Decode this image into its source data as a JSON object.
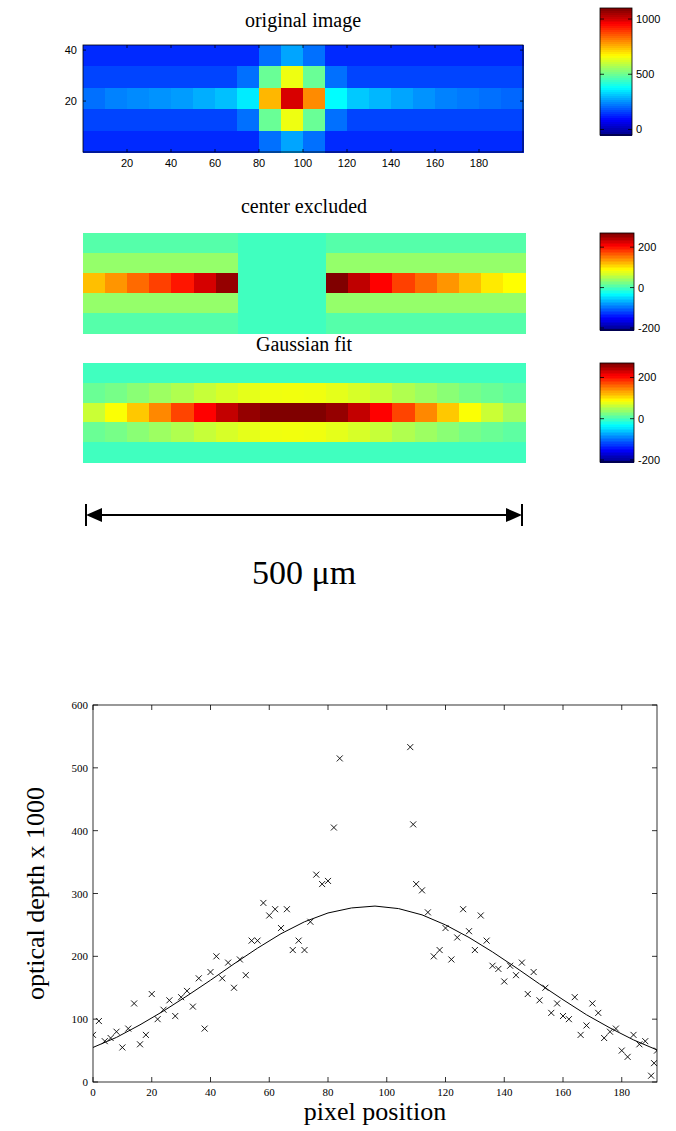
{
  "chart_data": [
    {
      "type": "heatmap",
      "title": "original image",
      "xlim": [
        0,
        200
      ],
      "ylim": [
        0,
        42
      ],
      "xticks": [
        20,
        40,
        60,
        80,
        100,
        120,
        140,
        160,
        180
      ],
      "yticks": [
        20,
        40
      ],
      "cells": [
        [
          140,
          140,
          140,
          140,
          140,
          140,
          140,
          140,
          220,
          280,
          220,
          140,
          140,
          140,
          140,
          140,
          140,
          140,
          140,
          140
        ],
        [
          170,
          170,
          170,
          170,
          170,
          170,
          170,
          220,
          500,
          650,
          500,
          220,
          170,
          170,
          170,
          170,
          170,
          170,
          170,
          170
        ],
        [
          220,
          240,
          250,
          260,
          270,
          290,
          310,
          360,
          750,
          1000,
          800,
          380,
          320,
          300,
          280,
          260,
          240,
          230,
          220,
          210
        ],
        [
          170,
          170,
          170,
          170,
          170,
          170,
          170,
          220,
          500,
          650,
          500,
          220,
          170,
          170,
          170,
          170,
          170,
          170,
          170,
          170
        ],
        [
          140,
          140,
          140,
          140,
          140,
          140,
          140,
          140,
          220,
          280,
          220,
          140,
          140,
          140,
          140,
          140,
          140,
          140,
          140,
          140
        ]
      ],
      "colorbar": {
        "range": [
          -50,
          1100
        ],
        "ticks": [
          0,
          500,
          1000
        ]
      }
    },
    {
      "type": "heatmap",
      "title": "center excluded",
      "tick_labels": false,
      "cells": [
        [
          10,
          10,
          10,
          10,
          10,
          10,
          10,
          0,
          0,
          0,
          0,
          10,
          10,
          10,
          10,
          10,
          10,
          10,
          10,
          10
        ],
        [
          40,
          40,
          40,
          40,
          40,
          40,
          40,
          0,
          0,
          0,
          0,
          40,
          40,
          40,
          40,
          40,
          40,
          40,
          40,
          40
        ],
        [
          120,
          140,
          160,
          180,
          200,
          230,
          260,
          0,
          0,
          0,
          0,
          270,
          240,
          210,
          180,
          160,
          140,
          120,
          100,
          90
        ],
        [
          40,
          40,
          40,
          40,
          40,
          40,
          40,
          0,
          0,
          0,
          0,
          40,
          40,
          40,
          40,
          40,
          40,
          40,
          40,
          40
        ],
        [
          10,
          10,
          10,
          10,
          10,
          10,
          10,
          0,
          0,
          0,
          0,
          10,
          10,
          10,
          10,
          10,
          10,
          10,
          10,
          10
        ]
      ],
      "colorbar": {
        "range": [
          -210,
          270
        ],
        "ticks": [
          200,
          0,
          -200
        ]
      }
    },
    {
      "type": "heatmap",
      "title": "Gaussian fit",
      "tick_labels": false,
      "cells": [
        [
          0,
          0,
          0,
          0,
          0,
          0,
          0,
          0,
          0,
          0,
          0,
          0,
          0,
          0,
          0,
          0,
          0,
          0,
          0,
          0
        ],
        [
          20,
          26,
          35,
          44,
          53,
          63,
          71,
          78,
          83,
          84,
          83,
          78,
          71,
          63,
          53,
          44,
          35,
          26,
          20,
          14
        ],
        [
          65,
          88,
          116,
          146,
          178,
          210,
          238,
          260,
          275,
          280,
          275,
          260,
          238,
          210,
          178,
          146,
          116,
          88,
          65,
          46
        ],
        [
          20,
          26,
          35,
          44,
          53,
          63,
          71,
          78,
          83,
          84,
          83,
          78,
          71,
          63,
          53,
          44,
          35,
          26,
          20,
          14
        ],
        [
          0,
          0,
          0,
          0,
          0,
          0,
          0,
          0,
          0,
          0,
          0,
          0,
          0,
          0,
          0,
          0,
          0,
          0,
          0,
          0
        ]
      ],
      "colorbar": {
        "range": [
          -210,
          270
        ],
        "ticks": [
          200,
          0,
          -200
        ]
      }
    },
    {
      "type": "scatter",
      "x_label": "pixel position",
      "y_label": "optical depth x 1000",
      "xlim": [
        0,
        192
      ],
      "ylim": [
        0,
        600
      ],
      "xticks": [
        0,
        20,
        40,
        60,
        80,
        100,
        120,
        140,
        160,
        180
      ],
      "yticks": [
        0,
        100,
        200,
        300,
        400,
        500,
        600
      ],
      "series": [
        {
          "type": "scatter",
          "marker": "x",
          "color": "#000000",
          "x": [
            0,
            2,
            4,
            6,
            8,
            10,
            12,
            14,
            16,
            18,
            20,
            22,
            24,
            26,
            28,
            30,
            32,
            34,
            36,
            38,
            40,
            42,
            44,
            46,
            48,
            50,
            52,
            54,
            56,
            58,
            60,
            62,
            64,
            66,
            68,
            70,
            72,
            74,
            76,
            78,
            80,
            82,
            84,
            108,
            109,
            110,
            112,
            114,
            116,
            118,
            120,
            122,
            124,
            126,
            128,
            130,
            132,
            134,
            136,
            138,
            140,
            142,
            144,
            146,
            148,
            150,
            152,
            154,
            156,
            158,
            160,
            162,
            164,
            166,
            168,
            170,
            172,
            174,
            176,
            178,
            180,
            182,
            184,
            186,
            188,
            190,
            191,
            192
          ],
          "values": [
            75,
            97,
            65,
            70,
            80,
            55,
            85,
            125,
            60,
            75,
            140,
            100,
            115,
            130,
            105,
            135,
            145,
            120,
            165,
            85,
            175,
            200,
            165,
            190,
            150,
            195,
            170,
            225,
            225,
            285,
            265,
            275,
            245,
            275,
            210,
            225,
            210,
            255,
            330,
            315,
            320,
            405,
            515,
            533,
            410,
            315,
            305,
            270,
            200,
            210,
            245,
            195,
            230,
            275,
            240,
            210,
            265,
            225,
            185,
            180,
            160,
            185,
            170,
            190,
            140,
            175,
            130,
            150,
            110,
            125,
            105,
            100,
            135,
            75,
            90,
            125,
            110,
            70,
            80,
            85,
            50,
            40,
            75,
            60,
            65,
            10,
            30,
            50
          ]
        },
        {
          "type": "line",
          "line_style": "solid",
          "color": "#000000",
          "x": [
            0,
            8,
            16,
            24,
            32,
            40,
            48,
            56,
            64,
            72,
            80,
            88,
            96,
            104,
            112,
            120,
            128,
            136,
            144,
            152,
            160,
            168,
            176,
            184,
            192
          ],
          "values": [
            55,
            71,
            91,
            113,
            137,
            162,
            188,
            213,
            236,
            255,
            269,
            277,
            280,
            276,
            266,
            250,
            230,
            207,
            182,
            156,
            131,
            107,
            86,
            67,
            51
          ]
        }
      ]
    }
  ],
  "scale_bar": {
    "label": "500 μm"
  }
}
